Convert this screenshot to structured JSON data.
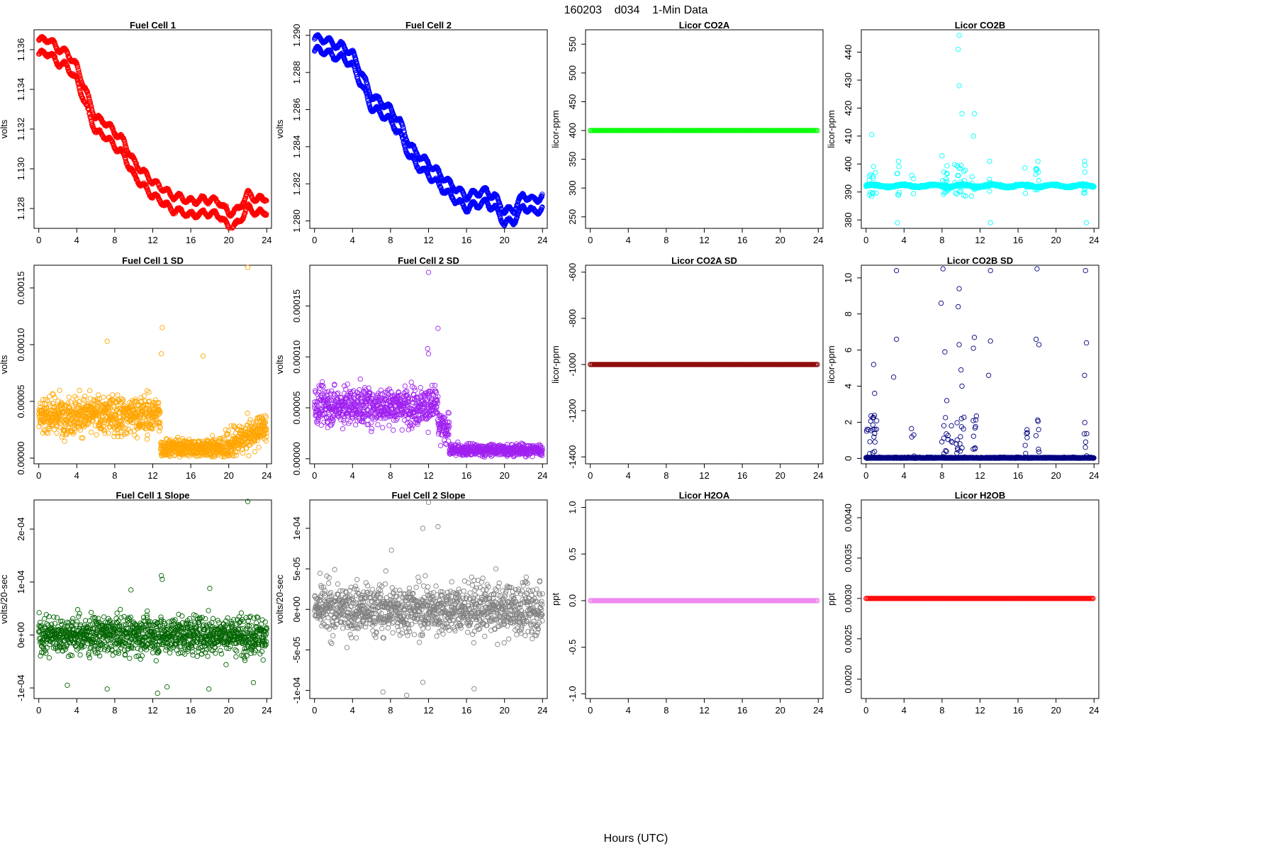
{
  "figure": {
    "title": "160203    d034    1-Min Data",
    "xlabel": "Hours (UTC)"
  },
  "chart_data": [
    {
      "type": "scatter",
      "title": "Fuel Cell 1",
      "ylabel": "volts",
      "color": "#ff0000",
      "gen": "fc1",
      "xlim": [
        -0.5,
        24.5
      ],
      "ylim": [
        1.127,
        1.137
      ],
      "yticks": [
        1.128,
        1.13,
        1.132,
        1.134,
        1.136
      ],
      "ytick_labels": [
        "1.128",
        "1.130",
        "1.132",
        "1.134",
        "1.136"
      ],
      "xticks": [
        0,
        4,
        8,
        12,
        16,
        20,
        24
      ],
      "xtick_labels": [
        "0",
        "4",
        "8",
        "12",
        "16",
        "20",
        "24"
      ],
      "points": []
    },
    {
      "type": "scatter",
      "title": "Fuel Cell 2",
      "ylabel": "volts",
      "color": "#0000ff",
      "gen": "fc2",
      "xlim": [
        -0.5,
        24.5
      ],
      "ylim": [
        1.2796,
        1.2903
      ],
      "yticks": [
        1.28,
        1.282,
        1.284,
        1.286,
        1.288,
        1.29
      ],
      "ytick_labels": [
        "1.280",
        "1.282",
        "1.284",
        "1.286",
        "1.288",
        "1.290"
      ],
      "xticks": [
        0,
        4,
        8,
        12,
        16,
        20,
        24
      ],
      "xtick_labels": [
        "0",
        "4",
        "8",
        "12",
        "16",
        "20",
        "24"
      ],
      "points": []
    },
    {
      "type": "scatter",
      "title": "Licor CO2A",
      "ylabel": "licor-ppm",
      "color": "#00ff00",
      "gen": "flat",
      "flat_value": 400,
      "xlim": [
        -0.5,
        24.5
      ],
      "ylim": [
        230,
        575
      ],
      "yticks": [
        250,
        300,
        350,
        400,
        450,
        500,
        550
      ],
      "ytick_labels": [
        "250",
        "300",
        "350",
        "400",
        "450",
        "500",
        "550"
      ],
      "xticks": [
        0,
        4,
        8,
        12,
        16,
        20,
        24
      ],
      "xtick_labels": [
        "0",
        "4",
        "8",
        "12",
        "16",
        "20",
        "24"
      ],
      "points": []
    },
    {
      "type": "scatter",
      "title": "Licor CO2B",
      "ylabel": "licor-ppm",
      "color": "#00ffff",
      "gen": "co2b",
      "xlim": [
        -0.5,
        24.5
      ],
      "ylim": [
        377,
        448
      ],
      "yticks": [
        380,
        390,
        400,
        410,
        420,
        430,
        440
      ],
      "ytick_labels": [
        "380",
        "390",
        "400",
        "410",
        "420",
        "430",
        "440"
      ],
      "xticks": [
        0,
        4,
        8,
        12,
        16,
        20,
        24
      ],
      "xtick_labels": [
        "0",
        "4",
        "8",
        "12",
        "16",
        "20",
        "24"
      ],
      "points": [
        [
          0.6,
          410.5
        ],
        [
          3.4,
          401
        ],
        [
          3.3,
          379
        ],
        [
          8.0,
          403
        ],
        [
          9.8,
          446
        ],
        [
          9.7,
          441
        ],
        [
          9.8,
          428
        ],
        [
          10.1,
          418
        ],
        [
          11.4,
          418
        ],
        [
          11.3,
          410
        ],
        [
          13.0,
          401
        ],
        [
          13.1,
          379
        ],
        [
          18.1,
          401
        ],
        [
          23.0,
          401
        ],
        [
          23.2,
          379
        ]
      ]
    },
    {
      "type": "scatter",
      "title": "Fuel Cell 1 SD",
      "ylabel": "volts",
      "color": "#ffa500",
      "gen": "sd1",
      "xlim": [
        -0.5,
        24.5
      ],
      "ylim": [
        -5e-06,
        0.00017
      ],
      "yticks": [
        0,
        5e-05,
        0.0001,
        0.00015
      ],
      "ytick_labels": [
        "0.00000",
        "0.00005",
        "0.00010",
        "0.00015"
      ],
      "xticks": [
        0,
        4,
        8,
        12,
        16,
        20,
        24
      ],
      "xtick_labels": [
        "0",
        "4",
        "8",
        "12",
        "16",
        "20",
        "24"
      ],
      "points": [
        [
          22.0,
          0.000168
        ],
        [
          13.0,
          0.000115
        ],
        [
          7.2,
          0.000103
        ],
        [
          17.3,
          9e-05
        ],
        [
          12.9,
          9.2e-05
        ]
      ]
    },
    {
      "type": "scatter",
      "title": "Fuel Cell 2 SD",
      "ylabel": "volts",
      "color": "#a020f0",
      "gen": "sd2",
      "xlim": [
        -0.5,
        24.5
      ],
      "ylim": [
        -5e-06,
        0.00019
      ],
      "yticks": [
        0,
        5e-05,
        0.0001,
        0.00015
      ],
      "ytick_labels": [
        "0.00000",
        "0.00005",
        "0.00010",
        "0.00015"
      ],
      "xticks": [
        0,
        4,
        8,
        12,
        16,
        20,
        24
      ],
      "xtick_labels": [
        "0",
        "4",
        "8",
        "12",
        "16",
        "20",
        "24"
      ],
      "points": [
        [
          12.0,
          0.000183
        ],
        [
          13.0,
          0.000128
        ],
        [
          12.0,
          0.000103
        ],
        [
          11.9,
          0.000108
        ]
      ]
    },
    {
      "type": "scatter",
      "title": "Licor CO2A SD",
      "ylabel": "licor-ppm",
      "color": "#8b0000",
      "gen": "flat",
      "flat_value": -1000,
      "xlim": [
        -0.5,
        24.5
      ],
      "ylim": [
        -1430,
        -570
      ],
      "yticks": [
        -1400,
        -1200,
        -1000,
        -800,
        -600
      ],
      "ytick_labels": [
        "-1400",
        "-1200",
        "-1000",
        "-800",
        "-600"
      ],
      "xticks": [
        0,
        4,
        8,
        12,
        16,
        20,
        24
      ],
      "xtick_labels": [
        "0",
        "4",
        "8",
        "12",
        "16",
        "20",
        "24"
      ],
      "points": []
    },
    {
      "type": "scatter",
      "title": "Licor CO2B SD",
      "ylabel": "licor-ppm",
      "color": "#000080",
      "gen": "co2bsd",
      "xlim": [
        -0.5,
        24.5
      ],
      "ylim": [
        -0.3,
        10.7
      ],
      "yticks": [
        0,
        2,
        4,
        6,
        8,
        10
      ],
      "ytick_labels": [
        "0",
        "2",
        "4",
        "6",
        "8",
        "10"
      ],
      "xticks": [
        0,
        4,
        8,
        12,
        16,
        20,
        24
      ],
      "xtick_labels": [
        "0",
        "4",
        "8",
        "12",
        "16",
        "20",
        "24"
      ],
      "points": [
        [
          3.2,
          10.4
        ],
        [
          8.1,
          10.5
        ],
        [
          9.8,
          9.4
        ],
        [
          13.1,
          10.4
        ],
        [
          18.0,
          10.5
        ],
        [
          23.1,
          10.4
        ],
        [
          7.9,
          8.6
        ],
        [
          9.7,
          8.4
        ],
        [
          0.8,
          5.2
        ],
        [
          2.9,
          4.5
        ],
        [
          3.2,
          6.6
        ],
        [
          8.3,
          5.9
        ],
        [
          9.8,
          6.3
        ],
        [
          10.0,
          4.9
        ],
        [
          11.4,
          6.7
        ],
        [
          11.3,
          6.1
        ],
        [
          12.9,
          4.6
        ],
        [
          13.1,
          6.5
        ],
        [
          17.9,
          6.6
        ],
        [
          18.2,
          6.3
        ],
        [
          23.0,
          4.6
        ],
        [
          23.2,
          6.4
        ],
        [
          0.9,
          3.6
        ],
        [
          10.1,
          4.0
        ],
        [
          8.5,
          3.2
        ]
      ]
    },
    {
      "type": "scatter",
      "title": "Fuel Cell 1 Slope",
      "ylabel": "volts/20-sec",
      "color": "#006400",
      "gen": "sl1",
      "xlim": [
        -0.5,
        24.5
      ],
      "ylim": [
        -0.00012,
        0.000255
      ],
      "yticks": [
        -0.0001,
        0,
        0.0001,
        0.0002
      ],
      "ytick_labels": [
        "-1e-04",
        "0e+00",
        "1e-04",
        "2e-04"
      ],
      "xticks": [
        0,
        4,
        8,
        12,
        16,
        20,
        24
      ],
      "xtick_labels": [
        "0",
        "4",
        "8",
        "12",
        "16",
        "20",
        "24"
      ],
      "points": [
        [
          22.0,
          0.000252
        ],
        [
          12.9,
          0.000112
        ],
        [
          13.0,
          0.000105
        ],
        [
          9.7,
          8.5e-05
        ],
        [
          18.0,
          8.8e-05
        ],
        [
          3.0,
          -9.5e-05
        ],
        [
          7.2,
          -0.000102
        ],
        [
          13.5,
          -9.8e-05
        ],
        [
          17.9,
          -0.000102
        ],
        [
          12.5,
          -0.00011
        ],
        [
          22.6,
          -9e-05
        ]
      ]
    },
    {
      "type": "scatter",
      "title": "Fuel Cell 2 Slope",
      "ylabel": "volts/20-sec",
      "color": "#808080",
      "gen": "sl2",
      "xlim": [
        -0.5,
        24.5
      ],
      "ylim": [
        -0.00011,
        0.000135
      ],
      "yticks": [
        -0.0001,
        -5e-05,
        0,
        5e-05,
        0.0001
      ],
      "ytick_labels": [
        "-1e-04",
        "-5e-05",
        "0e+00",
        "5e-05",
        "1e-04"
      ],
      "xticks": [
        0,
        4,
        8,
        12,
        16,
        20,
        24
      ],
      "xtick_labels": [
        "0",
        "4",
        "8",
        "12",
        "16",
        "20",
        "24"
      ],
      "points": [
        [
          12.0,
          0.000132
        ],
        [
          11.4,
          0.0001
        ],
        [
          13.0,
          0.000102
        ],
        [
          8.1,
          7.3e-05
        ],
        [
          7.2,
          -0.000102
        ],
        [
          9.7,
          -0.000106
        ],
        [
          11.4,
          -9e-05
        ],
        [
          16.8,
          -9.8e-05
        ]
      ]
    },
    {
      "type": "scatter",
      "title": "Licor H2OA",
      "ylabel": "ppt",
      "color": "#ee82ee",
      "gen": "flat",
      "flat_value": 0,
      "xlim": [
        -0.5,
        24.5
      ],
      "ylim": [
        -1.05,
        1.08
      ],
      "yticks": [
        -1,
        -0.5,
        0,
        0.5,
        1
      ],
      "ytick_labels": [
        "-1.0",
        "-0.5",
        "0.0",
        "0.5",
        "1.0"
      ],
      "xticks": [
        0,
        4,
        8,
        12,
        16,
        20,
        24
      ],
      "xtick_labels": [
        "0",
        "4",
        "8",
        "12",
        "16",
        "20",
        "24"
      ],
      "points": []
    },
    {
      "type": "scatter",
      "title": "Licor H2OB",
      "ylabel": "ppt",
      "color": "#ff0000",
      "gen": "flat",
      "flat_value": 0.003,
      "xlim": [
        -0.5,
        24.5
      ],
      "ylim": [
        0.00176,
        0.00422
      ],
      "yticks": [
        0.002,
        0.0025,
        0.003,
        0.0035,
        0.004
      ],
      "ytick_labels": [
        "0.0020",
        "0.0025",
        "0.0030",
        "0.0035",
        "0.0040"
      ],
      "xticks": [
        0,
        4,
        8,
        12,
        16,
        20,
        24
      ],
      "xtick_labels": [
        "0",
        "4",
        "8",
        "12",
        "16",
        "20",
        "24"
      ],
      "points": []
    }
  ]
}
